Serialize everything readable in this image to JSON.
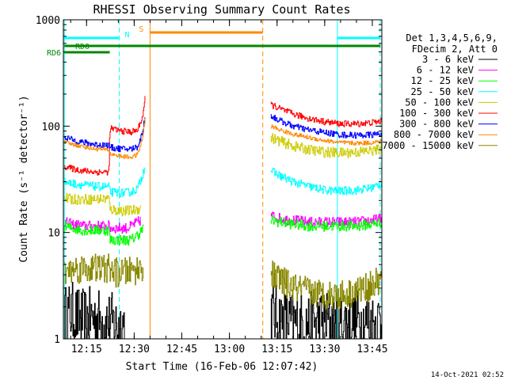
{
  "chart_data": {
    "type": "line",
    "title": "RHESSI Observing Summary Count Rates",
    "xlabel": "Start Time (16-Feb-06 12:07:42)",
    "ylabel": "Count Rate (s⁻¹ detector⁻¹)",
    "yscale": "log",
    "ylim": [
      1,
      1000
    ],
    "xlim_min": [
      7.7,
      108
    ],
    "x_tick_min": [
      15,
      30,
      45,
      60,
      75,
      90,
      105
    ],
    "x_tick_labels": [
      "12:15",
      "12:30",
      "12:45",
      "13:00",
      "13:15",
      "13:30",
      "13:45"
    ],
    "y_tick_values": [
      1,
      10,
      100,
      1000
    ],
    "y_tick_labels": [
      "1",
      "10",
      "100",
      "1000"
    ],
    "legend_header": [
      "Det 1,3,4,5,6,9,",
      "FDecim 2, Att 0"
    ],
    "series": [
      {
        "name": "3 - 6 keV",
        "color": "#000000",
        "noise": 0.3,
        "segments": [
          {
            "x": [
              8,
              10,
              12,
              14,
              17,
              20,
              23,
              25,
              27
            ],
            "y": [
              1.6,
              1.8,
              1.6,
              1.5,
              1.6,
              1.5,
              1.4,
              1.3,
              1.4
            ]
          },
          {
            "x": [
              73,
              75,
              80,
              85,
              90,
              95,
              100,
              105,
              108
            ],
            "y": [
              1.8,
              1.6,
              1.4,
              1.4,
              1.5,
              1.4,
              1.5,
              1.4,
              1.5
            ]
          }
        ]
      },
      {
        "name": "6 - 12 keV",
        "color": "#ff00ff",
        "noise": 0.05,
        "segments": [
          {
            "x": [
              8,
              10,
              14,
              18,
              22,
              22.3,
              26,
              28,
              30,
              32
            ],
            "y": [
              12.5,
              12,
              11.5,
              11.5,
              11.5,
              11,
              11,
              11,
              12,
              13
            ]
          },
          {
            "x": [
              73,
              76,
              80,
              85,
              90,
              95,
              100,
              105,
              108
            ],
            "y": [
              14.5,
              13.5,
              13,
              12.5,
              12.5,
              12.5,
              12.5,
              13,
              13.5
            ]
          }
        ]
      },
      {
        "name": "12 - 25 keV",
        "color": "#00ff00",
        "noise": 0.05,
        "segments": [
          {
            "x": [
              8,
              10,
              14,
              18,
              22,
              22.3,
              26,
              29,
              31,
              33
            ],
            "y": [
              11.5,
              11,
              10.5,
              10.5,
              10.5,
              8.5,
              8.5,
              8.5,
              9.5,
              11
            ]
          },
          {
            "x": [
              73,
              76,
              80,
              85,
              90,
              95,
              100,
              105,
              108
            ],
            "y": [
              13,
              12.5,
              12,
              11.5,
              11.5,
              11.5,
              11.5,
              12,
              12.5
            ]
          }
        ]
      },
      {
        "name": "25 - 50 keV",
        "color": "#00ffff",
        "noise": 0.04,
        "segments": [
          {
            "x": [
              8,
              10,
              14,
              18,
              22,
              22.3,
              26,
              29,
              31,
              32.5,
              33.5
            ],
            "y": [
              30,
              29,
              28,
              27,
              27,
              24,
              23.5,
              24,
              26,
              34,
              45
            ]
          },
          {
            "x": [
              73,
              76,
              80,
              85,
              90,
              95,
              100,
              105,
              108
            ],
            "y": [
              38,
              34,
              30,
              27,
              25,
              24.5,
              25,
              26.5,
              29
            ]
          }
        ]
      },
      {
        "name": "50 - 100 keV",
        "color": "#cccc00",
        "noise": 0.05,
        "segments": [
          {
            "x": [
              8,
              10,
              14,
              18,
              22,
              22.3,
              26,
              29,
              32
            ],
            "y": [
              21,
              20.5,
              20.5,
              20.5,
              21,
              16.5,
              16,
              16,
              17
            ]
          },
          {
            "x": [
              73,
              76,
              80,
              85,
              90,
              95,
              100,
              105,
              108
            ],
            "y": [
              78,
              72,
              65,
              60,
              57,
              56,
              57,
              59,
              61
            ]
          }
        ]
      },
      {
        "name": "100 - 300 keV",
        "color": "#ff0000",
        "noise": 0.03,
        "segments": [
          {
            "x": [
              8,
              10,
              14,
              18,
              22,
              22.3,
              26,
              29,
              31,
              32.5,
              33.5
            ],
            "y": [
              42,
              40,
              38,
              37,
              37,
              95,
              90,
              88,
              92,
              120,
              190
            ]
          },
          {
            "x": [
              73,
              76,
              80,
              85,
              90,
              95,
              100,
              105,
              108
            ],
            "y": [
              160,
              145,
              130,
              118,
              110,
              105,
              105,
              108,
              112
            ]
          }
        ]
      },
      {
        "name": "300 - 800 keV",
        "color": "#0000ff",
        "noise": 0.03,
        "segments": [
          {
            "x": [
              8,
              10,
              14,
              18,
              22,
              22.3,
              26,
              29,
              31,
              32.5,
              33.5
            ],
            "y": [
              80,
              75,
              70,
              67,
              66,
              63,
              61,
              61,
              64,
              85,
              130
            ]
          },
          {
            "x": [
              73,
              76,
              80,
              85,
              90,
              95,
              100,
              105,
              108
            ],
            "y": [
              125,
              112,
              100,
              92,
              87,
              83,
              82,
              83,
              85
            ]
          }
        ]
      },
      {
        "name": "800 - 7000 keV",
        "color": "#ff8800",
        "noise": 0.02,
        "segments": [
          {
            "x": [
              8,
              10,
              14,
              18,
              22,
              22.3,
              26,
              29,
              31,
              32.5,
              33.5
            ],
            "y": [
              70,
              68,
              64,
              61,
              60,
              55,
              52,
              51,
              54,
              75,
              120
            ]
          },
          {
            "x": [
              73,
              76,
              80,
              85,
              90,
              95,
              100,
              105,
              108
            ],
            "y": [
              100,
              92,
              84,
              78,
              73,
              70,
              69,
              70,
              72
            ]
          }
        ]
      },
      {
        "name": "7000 - 15000 keV",
        "color": "#888800",
        "noise": 0.14,
        "segments": [
          {
            "x": [
              8,
              10,
              14,
              18,
              22,
              24,
              27,
              30,
              32,
              33
            ],
            "y": [
              4.2,
              4.5,
              4.6,
              4.6,
              4.6,
              4.2,
              4.2,
              4.4,
              4.6,
              5.0
            ]
          },
          {
            "x": [
              73,
              76,
              80,
              85,
              90,
              95,
              100,
              105,
              108
            ],
            "y": [
              4.0,
              3.6,
              3.0,
              2.8,
              2.6,
              2.6,
              2.8,
              3.2,
              3.6
            ]
          }
        ]
      }
    ],
    "vertical_markers": [
      {
        "x_min": 8.0,
        "color": "#00ffff",
        "style": "solid"
      },
      {
        "x_min": 25.3,
        "color": "#00ffff",
        "style": "dashed"
      },
      {
        "x_min": 35.0,
        "color": "#ff8800",
        "style": "solid"
      },
      {
        "x_min": 70.5,
        "color": "#ff8800",
        "style": "dashed"
      },
      {
        "x_min": 94.0,
        "color": "#00ffff",
        "style": "solid"
      },
      {
        "x_min": 107.5,
        "color": "#00ffff",
        "style": "dashed"
      }
    ],
    "flag_bars": [
      {
        "label": "",
        "color": "#00ffff",
        "start_min": 8.0,
        "end_min": 25.3,
        "level": 1
      },
      {
        "label": "N",
        "color": "#00ffff",
        "start_min": 94.0,
        "end_min": 107.5,
        "level": 1
      },
      {
        "label": "S",
        "color": "#ff8800",
        "start_min": 35.0,
        "end_min": 70.5,
        "level": 0
      },
      {
        "label": "RD0",
        "color": "#008800",
        "start_min": 8.0,
        "end_min": 107.5,
        "level": 2
      },
      {
        "label": "RD6",
        "color": "#008800",
        "start_min": 8.0,
        "end_min": 22.3,
        "level": 3
      }
    ]
  },
  "timestamp": "14-Oct-2021 02:52"
}
